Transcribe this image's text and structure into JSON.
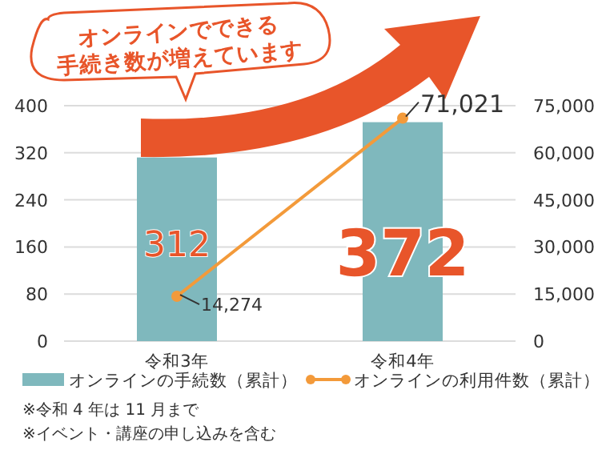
{
  "chart_data": {
    "type": "bar",
    "title": "オンラインでできる手続き数が増えています",
    "categories": [
      "令和3年",
      "令和4年"
    ],
    "series": [
      {
        "name": "オンラインの手続数（累計）",
        "color": "#7fb8bd",
        "values": [
          312,
          372
        ],
        "value_labels": [
          "312",
          "372"
        ]
      },
      {
        "name": "オンラインの利用件数（累計）",
        "type": "line",
        "axis": "y2",
        "color": "#f39a3a",
        "values": [
          14274,
          71021
        ],
        "value_labels": [
          "14,274",
          "71,021"
        ]
      }
    ],
    "ylim": [
      0,
      400
    ],
    "yticks": [
      0,
      80,
      160,
      240,
      320,
      400
    ],
    "y2lim": [
      0,
      75000
    ],
    "y2ticks": [
      0,
      {
        "value": 15000,
        "label": "15,000"
      },
      {
        "value": 30000,
        "label": "30,000"
      },
      {
        "value": 45000,
        "label": "45,000"
      },
      {
        "value": 60000,
        "label": "60,000"
      },
      {
        "value": 75000,
        "label": "75,000"
      }
    ],
    "grid": "y",
    "legend": "bottom",
    "marker": "circle",
    "annotations": [
      "※令和 4 年は 11 月まで",
      "※イベント・講座の申し込みを含む"
    ]
  }
}
